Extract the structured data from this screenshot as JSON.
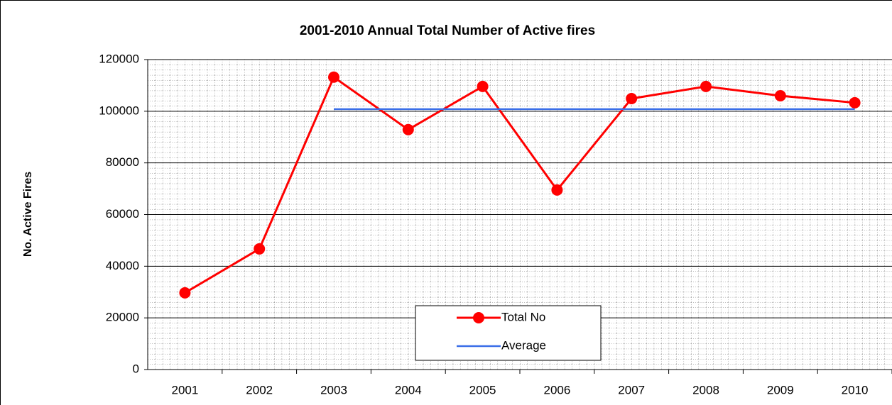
{
  "chart_data": {
    "type": "line",
    "title": "2001-2010 Annual Total Number of Active fires",
    "y_label": "No. Active Fires",
    "categories": [
      "2001",
      "2002",
      "2003",
      "2004",
      "2005",
      "2006",
      "2007",
      "2008",
      "2009",
      "2010"
    ],
    "series": [
      {
        "name": "Total No",
        "color": "#ff0000",
        "marker": "circle",
        "values": [
          29700,
          46700,
          113200,
          92900,
          109600,
          69500,
          104900,
          109600,
          106000,
          103300
        ]
      },
      {
        "name": "Average",
        "color": "#3a6ee8",
        "marker": "none",
        "values": [
          null,
          null,
          100800,
          100800,
          100800,
          100800,
          100800,
          100800,
          100800,
          100800
        ]
      }
    ],
    "ylim": [
      0,
      120000
    ],
    "yticks": [
      0,
      20000,
      40000,
      60000,
      80000,
      100000,
      120000
    ],
    "grid": true,
    "legend": "bottom"
  }
}
